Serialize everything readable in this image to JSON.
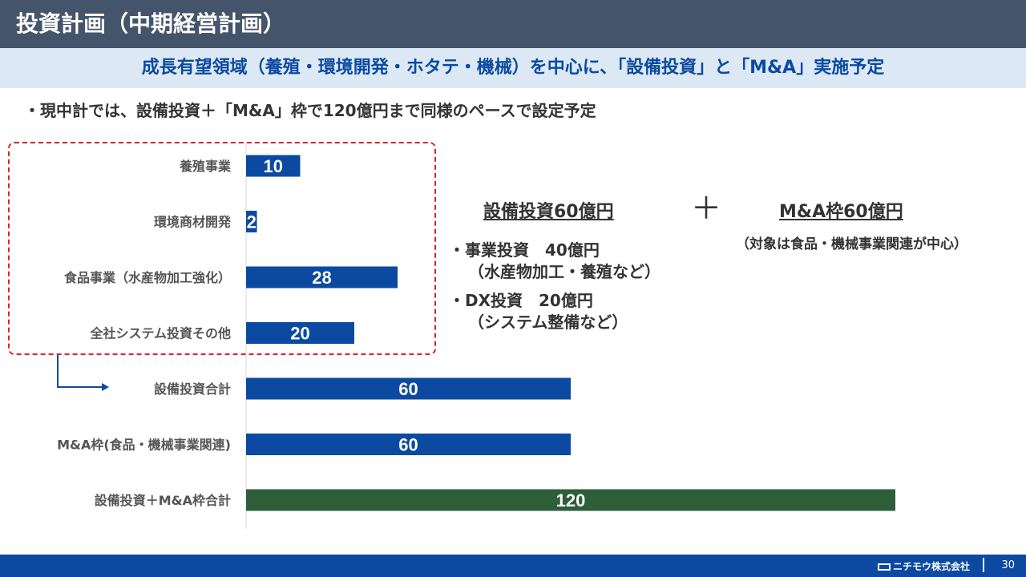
{
  "header": {
    "title": "投資計画（中期経営計画）",
    "subtitle": "成長有望領域（養殖・環境開発・ホタテ・機械）を中心に、「設備投資」と「M&A」実施予定"
  },
  "bullet": "・現中計では、設備投資＋「M&A」枠で120億円まで同様のペースで設定予定",
  "capex": {
    "heading": "設備投資60億円",
    "item1": "・事業投資　40億円",
    "item1_detail": "（水産物加工・養殖など）",
    "item2": "・DX投資　20億円",
    "item2_detail": "（システム整備など）"
  },
  "plus": "＋",
  "ma": {
    "heading": "M&A枠60億円",
    "note": "（対象は食品・機械事業関連が中心）"
  },
  "chart_data": {
    "type": "bar",
    "orientation": "horizontal",
    "categories": [
      "養殖事業",
      "環境商材開発",
      "食品事業（水産物加工強化）",
      "全社システム投資その他",
      "設備投資合計",
      "M&A枠(食品・機械事業関連)",
      "設備投資＋M&A枠合計"
    ],
    "values": [
      10,
      2,
      28,
      20,
      60,
      60,
      120
    ],
    "value_labels": [
      "10",
      "2",
      "28",
      "20",
      "60",
      "60",
      "120"
    ],
    "colors": [
      "#0b4aa0",
      "#0b4aa0",
      "#0b4aa0",
      "#0b4aa0",
      "#0b4aa0",
      "#0b4aa0",
      "#2e5e3a"
    ],
    "xlim": [
      0,
      130
    ]
  },
  "footer": {
    "company": "ニチモウ株式会社",
    "page": "30"
  },
  "colors": {
    "title_bg": "#44546a",
    "subtitle_bg": "#dce9f5",
    "accent_blue": "#0b4aa0",
    "total_green": "#2e5e3a",
    "dash_red": "#e0202c"
  }
}
